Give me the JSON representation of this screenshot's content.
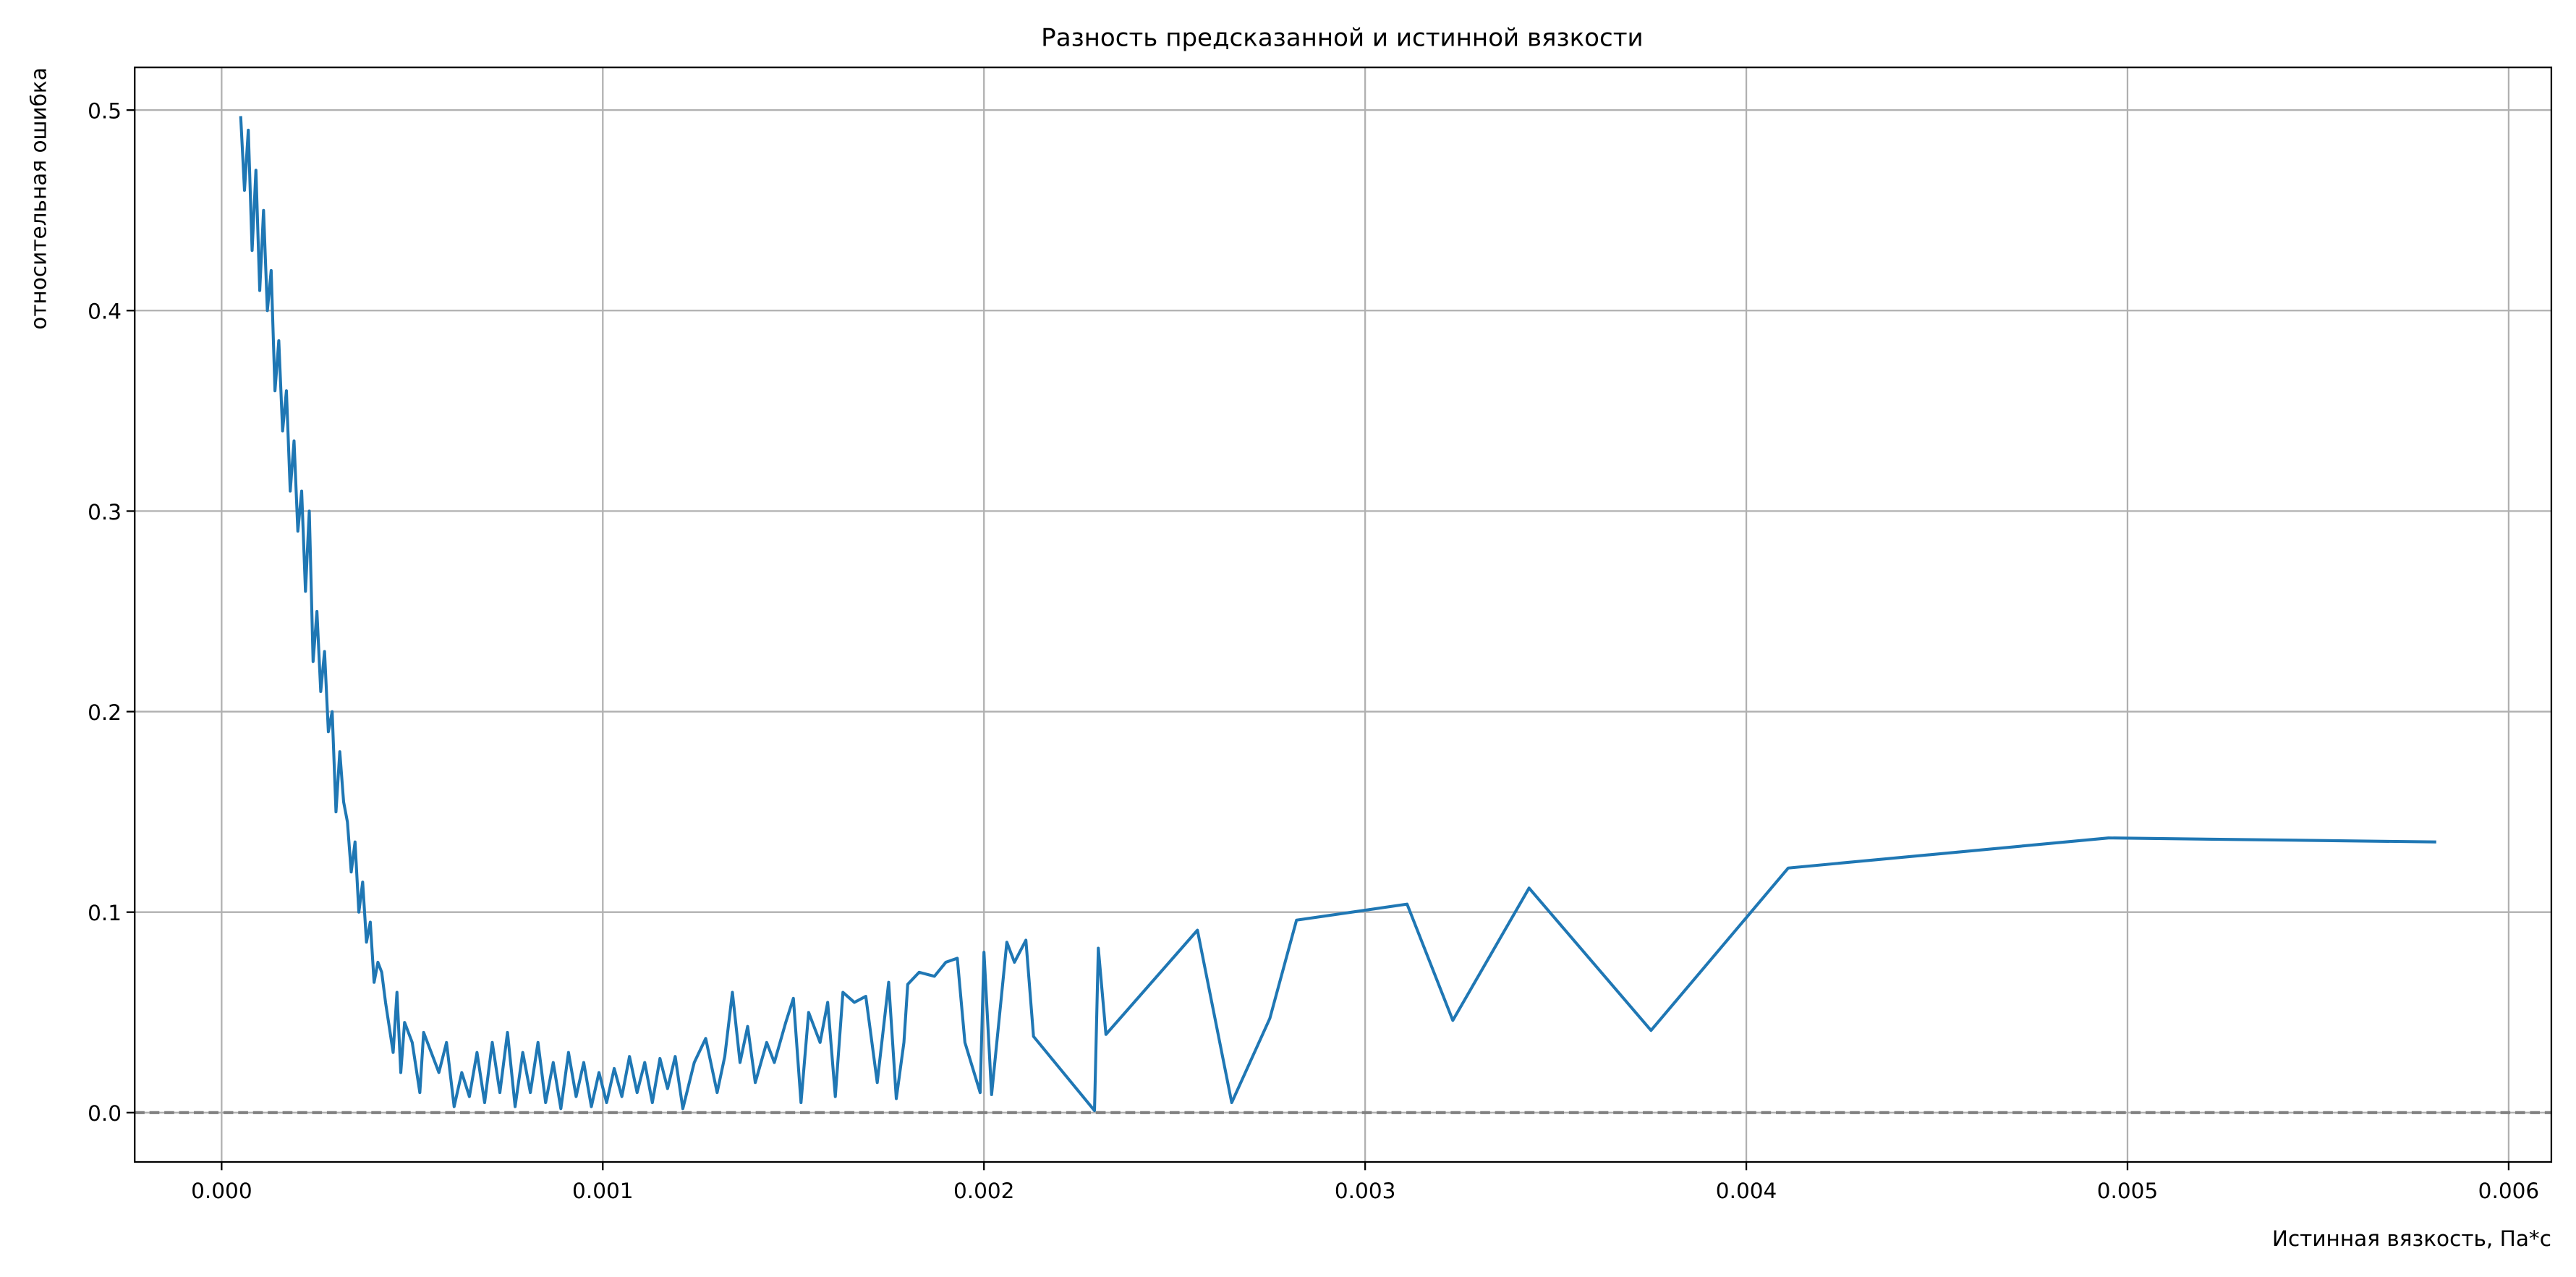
{
  "chart_data": {
    "type": "line",
    "title": "Разность предсказанной и истинной вязкости",
    "xlabel": "Истинная вязкость, Па*с",
    "ylabel": "относительная ошибка",
    "x": [
      5e-05,
      6e-05,
      7e-05,
      8e-05,
      9e-05,
      0.0001,
      0.00011,
      0.00012,
      0.00013,
      0.00014,
      0.00015,
      0.00016,
      0.00017,
      0.00018,
      0.00019,
      0.0002,
      0.00021,
      0.00022,
      0.00023,
      0.00024,
      0.00025,
      0.00026,
      0.00027,
      0.00028,
      0.00029,
      0.0003,
      0.00031,
      0.00032,
      0.00033,
      0.00034,
      0.00035,
      0.00036,
      0.00037,
      0.00038,
      0.00039,
      0.0004,
      0.00041,
      0.00042,
      0.00043,
      0.00045,
      0.00046,
      0.00047,
      0.00048,
      0.0005,
      0.00052,
      0.00053,
      0.00055,
      0.00057,
      0.00059,
      0.00061,
      0.00063,
      0.00065,
      0.00067,
      0.00069,
      0.00071,
      0.00073,
      0.00075,
      0.00077,
      0.00079,
      0.00081,
      0.00083,
      0.00085,
      0.00087,
      0.00089,
      0.00091,
      0.00093,
      0.00095,
      0.00097,
      0.00099,
      0.00101,
      0.00103,
      0.00105,
      0.00107,
      0.00109,
      0.00111,
      0.00113,
      0.00115,
      0.00117,
      0.00119,
      0.00121,
      0.00124,
      0.00127,
      0.0013,
      0.00132,
      0.00134,
      0.00136,
      0.00138,
      0.0014,
      0.00143,
      0.00145,
      0.00148,
      0.0015,
      0.00152,
      0.00154,
      0.00157,
      0.00159,
      0.00161,
      0.00163,
      0.00166,
      0.00169,
      0.00172,
      0.00175,
      0.00177,
      0.00179,
      0.0018,
      0.00183,
      0.00187,
      0.0019,
      0.00193,
      0.00195,
      0.00199,
      0.002,
      0.00202,
      0.00206,
      0.00208,
      0.00211,
      0.00213,
      0.00229,
      0.0023,
      0.00232,
      0.00256,
      0.00265,
      0.00275,
      0.00282,
      0.00311,
      0.00323,
      0.00343,
      0.00375,
      0.00411,
      0.00495,
      0.00581
    ],
    "series": [
      {
        "color": "#1f77b4",
        "values": [
          0.497,
          0.46,
          0.49,
          0.43,
          0.47,
          0.41,
          0.45,
          0.4,
          0.42,
          0.36,
          0.385,
          0.34,
          0.36,
          0.31,
          0.335,
          0.29,
          0.31,
          0.26,
          0.3,
          0.225,
          0.25,
          0.21,
          0.23,
          0.19,
          0.2,
          0.15,
          0.18,
          0.155,
          0.145,
          0.12,
          0.135,
          0.1,
          0.115,
          0.085,
          0.095,
          0.065,
          0.075,
          0.07,
          0.055,
          0.03,
          0.06,
          0.02,
          0.045,
          0.035,
          0.01,
          0.04,
          0.03,
          0.02,
          0.035,
          0.003,
          0.02,
          0.008,
          0.03,
          0.005,
          0.035,
          0.01,
          0.04,
          0.003,
          0.03,
          0.01,
          0.035,
          0.005,
          0.025,
          0.002,
          0.03,
          0.008,
          0.025,
          0.003,
          0.02,
          0.005,
          0.022,
          0.008,
          0.028,
          0.01,
          0.025,
          0.005,
          0.027,
          0.012,
          0.028,
          0.002,
          0.025,
          0.037,
          0.01,
          0.028,
          0.06,
          0.025,
          0.043,
          0.015,
          0.035,
          0.025,
          0.045,
          0.057,
          0.005,
          0.05,
          0.035,
          0.055,
          0.008,
          0.06,
          0.055,
          0.058,
          0.015,
          0.065,
          0.007,
          0.035,
          0.064,
          0.07,
          0.068,
          0.075,
          0.077,
          0.035,
          0.01,
          0.08,
          0.009,
          0.085,
          0.075,
          0.086,
          0.038,
          0.001,
          0.082,
          0.039,
          0.091,
          0.005,
          0.047,
          0.096,
          0.104,
          0.046,
          0.112,
          0.041,
          0.122,
          0.137,
          0.135
        ]
      }
    ],
    "hlines": [
      {
        "value": 0,
        "color": "#808080",
        "style": "dashed"
      }
    ],
    "xlim": [
      -0.000228,
      0.006112
    ],
    "ylim": [
      -0.0246,
      0.5213
    ],
    "xticks": [
      {
        "value": 0,
        "label": "0.000"
      },
      {
        "value": 0.001,
        "label": "0.001"
      },
      {
        "value": 0.002,
        "label": "0.002"
      },
      {
        "value": 0.003,
        "label": "0.003"
      },
      {
        "value": 0.004,
        "label": "0.004"
      },
      {
        "value": 0.005,
        "label": "0.005"
      },
      {
        "value": 0.006,
        "label": "0.006"
      }
    ],
    "yticks": [
      {
        "value": 0,
        "label": "0.0"
      },
      0.1,
      0.2,
      0.3,
      0.4,
      0.5
    ],
    "grid": true
  }
}
